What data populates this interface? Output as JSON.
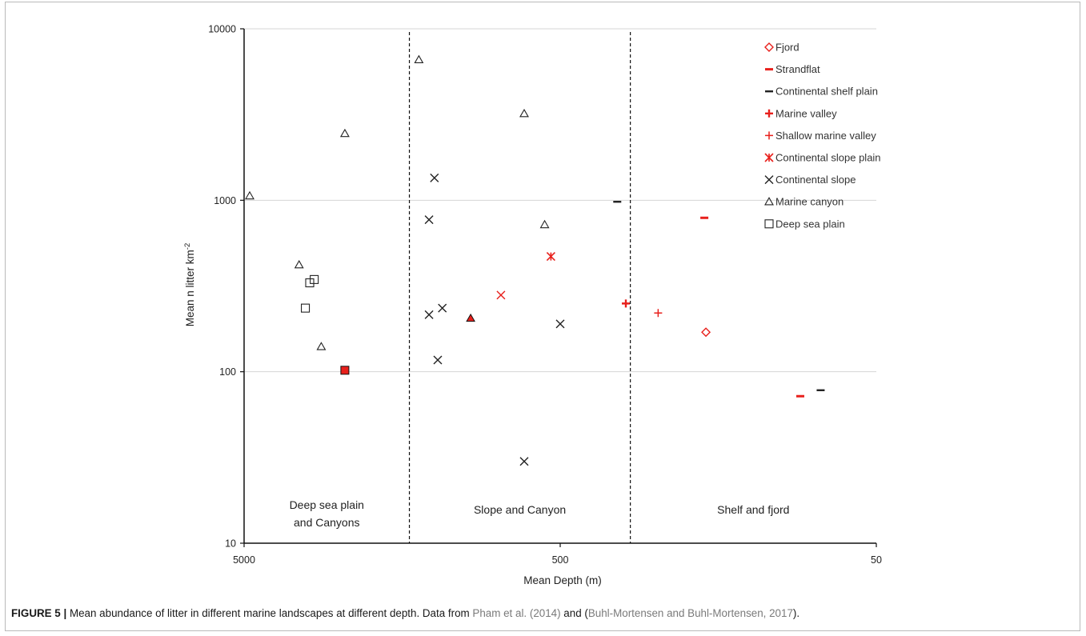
{
  "chart_data": {
    "type": "scatter",
    "xlabel": "Mean Depth (m)",
    "ylabel": "Mean n litter km",
    "ylabel_sup": "-2",
    "x_scale": "log",
    "x_reversed": true,
    "y_scale": "log",
    "xlim": [
      5000,
      50
    ],
    "ylim": [
      10,
      10000
    ],
    "x_ticks": [
      5000,
      500,
      50
    ],
    "x_tick_labels": [
      "5000",
      "500",
      "50"
    ],
    "y_ticks": [
      10,
      100,
      1000,
      10000
    ],
    "y_tick_labels": [
      "10",
      "100",
      "1000",
      "10000"
    ],
    "grid": "horizontal",
    "legend_position": "top-right",
    "dividers": [
      1500,
      300
    ],
    "regions": [
      {
        "id": "deep",
        "lines": [
          "Deep sea plain",
          "and  Canyons"
        ]
      },
      {
        "id": "slope",
        "lines": [
          "Slope and Canyon"
        ]
      },
      {
        "id": "shelf",
        "lines": [
          "Shelf and fjord"
        ]
      }
    ],
    "series": [
      {
        "name": "Fjord",
        "marker": "diamond-open",
        "color": "#e8201c",
        "points": [
          [
            173,
            170
          ]
        ]
      },
      {
        "name": "Strandflat",
        "marker": "dash-thick",
        "color": "#e8201c",
        "points": [
          [
            175,
            790
          ],
          [
            87,
            72
          ]
        ]
      },
      {
        "name": "Continental shelf plain",
        "marker": "dash",
        "color": "#222222",
        "points": [
          [
            330,
            980
          ],
          [
            75,
            78
          ]
        ]
      },
      {
        "name": "Marine valley",
        "marker": "plus-bold",
        "color": "#e8201c",
        "points": [
          [
            310,
            250
          ]
        ]
      },
      {
        "name": "Shallow marine valley",
        "marker": "plus",
        "color": "#e8201c",
        "points": [
          [
            245,
            220
          ]
        ]
      },
      {
        "name": "Continental slope plain",
        "marker": "asterisk",
        "color": "#e8201c",
        "points": [
          [
            535,
            470
          ]
        ]
      },
      {
        "name": "",
        "marker": "x",
        "color": "#e8201c",
        "points": [
          [
            770,
            280
          ]
        ]
      },
      {
        "name": "Continental slope",
        "marker": "x",
        "color": "#222222",
        "points": [
          [
            1250,
            1350
          ],
          [
            1300,
            770
          ],
          [
            1300,
            215
          ],
          [
            1180,
            235
          ],
          [
            1220,
            117
          ],
          [
            650,
            30
          ],
          [
            500,
            190
          ]
        ]
      },
      {
        "name": "Marine canyon",
        "marker": "triangle-open",
        "color": "#222222",
        "points": [
          [
            4800,
            1060
          ],
          [
            2400,
            2450
          ],
          [
            1400,
            6600
          ],
          [
            650,
            3200
          ],
          [
            560,
            720
          ],
          [
            3350,
            420
          ],
          [
            2850,
            140
          ]
        ]
      },
      {
        "name": "",
        "marker": "triangle-filled",
        "color": "#e8201c",
        "points": [
          [
            960,
            205
          ]
        ]
      },
      {
        "name": "Deep sea plain",
        "marker": "square-open",
        "color": "#222222",
        "points": [
          [
            3100,
            330
          ],
          [
            3000,
            345
          ],
          [
            3200,
            235
          ]
        ]
      },
      {
        "name": "",
        "marker": "square-filled",
        "color": "#e8201c",
        "points": [
          [
            2400,
            102
          ]
        ]
      }
    ]
  },
  "caption": {
    "label": "FIGURE 5 |",
    "text_before": " Mean abundance of litter in different marine landscapes at different depth. Data from ",
    "cite1": "Pham et al. (2014)",
    "text_middle": " and (",
    "cite2": "Buhl-Mortensen and Buhl-Mortensen, 2017",
    "text_after": ")."
  }
}
